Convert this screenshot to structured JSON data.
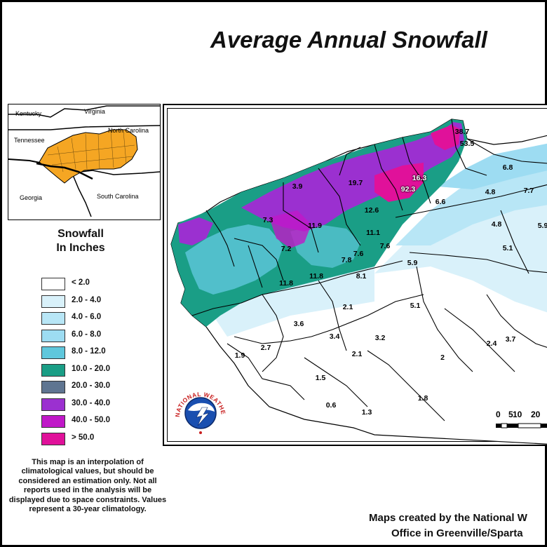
{
  "title": "Average Annual Snowfall",
  "inset": {
    "labels": {
      "kentucky": "Kentucky",
      "virginia": "Virginia",
      "tennessee": "Tennessee",
      "north_carolina": "North Carolina",
      "georgia": "Georgia",
      "south_carolina": "South Carolina"
    },
    "fill_color": "#f5a623"
  },
  "legend": {
    "title_line1": "Snowfall",
    "title_line2": "In Inches",
    "items": [
      {
        "label": "< 2.0",
        "color": "#ffffff"
      },
      {
        "label": "2.0 - 4.0",
        "color": "#d9f1fa"
      },
      {
        "label": "4.0 - 6.0",
        "color": "#b8e6f6"
      },
      {
        "label": "6.0 - 8.0",
        "color": "#9ddcf2"
      },
      {
        "label": "8.0 - 12.0",
        "color": "#5fc7dc"
      },
      {
        "label": "10.0 - 20.0",
        "color": "#1a9e86"
      },
      {
        "label": "20.0 - 30.0",
        "color": "#5f7591"
      },
      {
        "label": "30.0 - 40.0",
        "color": "#9b30d0"
      },
      {
        "label": "40.0 - 50.0",
        "color": "#c018c8"
      },
      {
        "label": "> 50.0",
        "color": "#e0119a"
      }
    ]
  },
  "note": "This map is an interpolation of climatological values, but should be considered an estimation only. Not all reports used in the analysis will be displayed due to space constraints. Values represent a 30-year climatology.",
  "values": {
    "v1": "38.7",
    "v2": "53.5",
    "v3": "16.3",
    "v4": "92.3",
    "v5": "19.7",
    "v6": "3.9",
    "v7": "6.8",
    "v8": "4.8",
    "v9": "7.7",
    "v10": "6.6",
    "v11": "12.6",
    "v12": "7.3",
    "v13": "11.9",
    "v14": "11.1",
    "v15": "4.8",
    "v16": "5.9",
    "v17": "7.2",
    "v18": "7.6",
    "v19": "7.6",
    "v20": "7.8",
    "v21": "5.1",
    "v22": "5.9",
    "v23": "11.8",
    "v24": "11.8",
    "v25": "8.1",
    "v26": "2.1",
    "v27": "5.1",
    "v28": "3.6",
    "v29": "3.4",
    "v30": "3.2",
    "v31": "2.7",
    "v32": "1.9",
    "v33": "2.1",
    "v34": "2.4",
    "v35": "3.7",
    "v36": "2",
    "v37": "1.5",
    "v38": "0.6",
    "v39": "1.3",
    "v40": "1.8"
  },
  "scale": {
    "n1": "0",
    "n2": "5",
    "n3": "10",
    "n4": "20"
  },
  "logo_text": "NATIONAL WEATHER SERVICE",
  "credit": {
    "line1": "Maps created by the National W",
    "line2": "Office in Greenville/Sparta"
  }
}
